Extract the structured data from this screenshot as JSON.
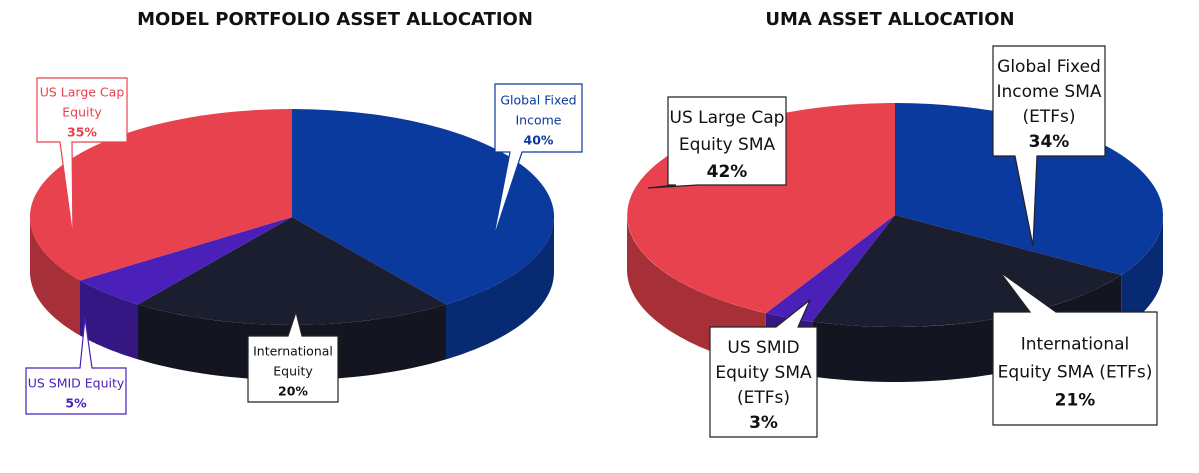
{
  "chart_data": [
    {
      "type": "pie",
      "title": "MODEL PORTFOLIO ASSET ALLOCATION",
      "series": [
        {
          "name": "Global Fixed Income",
          "value": 40,
          "label": "40%",
          "color": "#0b3a9e"
        },
        {
          "name": "International Equity",
          "value": 20,
          "label": "20%",
          "color": "#1b1e2e"
        },
        {
          "name": "US SMID Equity",
          "value": 5,
          "label": "5%",
          "color": "#4a20b8"
        },
        {
          "name": "US Large Cap Equity",
          "value": 35,
          "label": "35%",
          "color": "#e8424e"
        }
      ],
      "callouts": [
        {
          "lines": [
            "Global Fixed",
            "Income",
            "40%"
          ],
          "text_color": "#0b3a9e"
        },
        {
          "lines": [
            "International",
            "Equity",
            "20%"
          ],
          "text_color": "#111111"
        },
        {
          "lines": [
            "US SMID Equity",
            "5%"
          ],
          "text_color": "#4a20b8"
        },
        {
          "lines": [
            "US Large Cap",
            "Equity",
            "35%"
          ],
          "text_color": "#e8424e"
        }
      ]
    },
    {
      "type": "pie",
      "title": "UMA ASSET ALLOCATION",
      "series": [
        {
          "name": "Global Fixed Income SMA (ETFs)",
          "value": 34,
          "label": "34%",
          "color": "#0b3a9e"
        },
        {
          "name": "International Equity SMA (ETFs)",
          "value": 21,
          "label": "21%",
          "color": "#1b1e2e"
        },
        {
          "name": "US SMID Equity SMA (ETFs)",
          "value": 3,
          "label": "3%",
          "color": "#4a20b8"
        },
        {
          "name": "US Large Cap Equity SMA",
          "value": 42,
          "label": "42%",
          "color": "#e8424e"
        }
      ],
      "callouts": [
        {
          "lines": [
            "Global Fixed",
            "Income SMA",
            "(ETFs)",
            "34%"
          ],
          "text_color": "#111111"
        },
        {
          "lines": [
            "International",
            "Equity SMA (ETFs)",
            "21%"
          ],
          "text_color": "#111111"
        },
        {
          "lines": [
            "US SMID",
            "Equity SMA",
            "(ETFs)",
            "3%"
          ],
          "text_color": "#111111"
        },
        {
          "lines": [
            "US Large Cap",
            "Equity SMA",
            "42%"
          ],
          "text_color": "#111111"
        }
      ]
    }
  ]
}
